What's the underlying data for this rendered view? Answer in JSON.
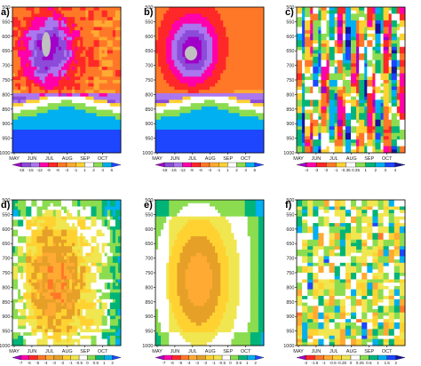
{
  "chart_data": [
    {
      "type": "heatmap",
      "panel_label": "a)",
      "x_ticks": [
        "MAY",
        "JUN",
        "JUL",
        "AUG",
        "SEP",
        "OCT"
      ],
      "y_ticks": [
        "500",
        "550",
        "600",
        "650",
        "700",
        "750",
        "800",
        "850",
        "900",
        "950",
        "1000"
      ],
      "ylim": [
        1000,
        500
      ],
      "y_inverted": true,
      "colorbar": [
        "-18",
        "-15",
        "-12",
        "-9",
        "-6",
        "-3",
        "-1",
        "1",
        "2",
        "4",
        "6"
      ],
      "colors": [
        "#a000c8",
        "#8c4bd8",
        "#aa77ee",
        "#ff00aa",
        "#ff2828",
        "#ff7828",
        "#ffaa32",
        "#ffd232",
        "#ffffff",
        "#8cdc50",
        "#00b0f0",
        "#1e46ff"
      ],
      "pattern": "dry upper, core ~650 hPa in early July, wet near surface"
    },
    {
      "type": "heatmap",
      "panel_label": "b)",
      "x_ticks": [
        "MAY",
        "JUN",
        "JUL",
        "AUG",
        "SEP",
        "OCT"
      ],
      "y_ticks": [
        "500",
        "550",
        "600",
        "650",
        "700",
        "750",
        "800",
        "850",
        "900",
        "950",
        "1000"
      ],
      "ylim": [
        1000,
        500
      ],
      "y_inverted": true,
      "colorbar": [
        "-18",
        "-15",
        "-12",
        "-9",
        "-6",
        "-3",
        "-1",
        "1",
        "2",
        "4",
        "6"
      ],
      "colors": [
        "#a000c8",
        "#8c4bd8",
        "#aa77ee",
        "#ff00aa",
        "#ff2828",
        "#ff7828",
        "#ffaa32",
        "#ffd232",
        "#ffffff",
        "#8cdc50",
        "#00b0f0",
        "#1e46ff"
      ],
      "pattern": "smooth version of a)"
    },
    {
      "type": "heatmap",
      "panel_label": "c)",
      "x_ticks": [
        "MAY",
        "JUN",
        "JUL",
        "AUG",
        "SEP",
        "OCT"
      ],
      "y_ticks": [
        "500",
        "550",
        "600",
        "650",
        "700",
        "750",
        "800",
        "850",
        "900",
        "950",
        "1000"
      ],
      "ylim": [
        1000,
        500
      ],
      "y_inverted": true,
      "colorbar": [
        "-4",
        "-3",
        "-2",
        "-1",
        "-0.35",
        "0.35",
        "1",
        "2",
        "3",
        "4"
      ],
      "colors": [
        "#a000c8",
        "#ff00aa",
        "#ff2828",
        "#ff7828",
        "#ffd232",
        "#ffffff",
        "#8cdc50",
        "#00b478",
        "#00b0f0",
        "#1e46ff",
        "#1414a0"
      ],
      "pattern": "difference a) minus b), vertical streaks"
    },
    {
      "type": "heatmap",
      "panel_label": "d)",
      "x_ticks": [
        "MAY",
        "JUN",
        "JUL",
        "AUG",
        "SEP",
        "OCT"
      ],
      "y_ticks": [
        "500",
        "550",
        "600",
        "650",
        "700",
        "750",
        "800",
        "850",
        "900",
        "950",
        "1000"
      ],
      "ylim": [
        1000,
        500
      ],
      "y_inverted": true,
      "colorbar": [
        "-7",
        "-6",
        "-5",
        "-4",
        "-3",
        "-2",
        "-1",
        "-0.5",
        "0",
        "0.5",
        "1",
        "2"
      ],
      "colors": [
        "#a000c8",
        "#ff00aa",
        "#ff2828",
        "#ff7828",
        "#ffaa32",
        "#e6a028",
        "#ffd232",
        "#f0e650",
        "#ffffff",
        "#8cdc50",
        "#00b478",
        "#00b0f0",
        "#1e46ff"
      ],
      "pattern": "orange core mid-levels, white margins"
    },
    {
      "type": "heatmap",
      "panel_label": "e)",
      "x_ticks": [
        "MAY",
        "JUN",
        "JUL",
        "AUG",
        "SEP",
        "OCT"
      ],
      "y_ticks": [
        "500",
        "550",
        "600",
        "650",
        "700",
        "750",
        "800",
        "850",
        "900",
        "950",
        "1000"
      ],
      "ylim": [
        1000,
        500
      ],
      "y_inverted": true,
      "colorbar": [
        "-7",
        "-6",
        "-5",
        "-4",
        "-3",
        "-2",
        "-1",
        "-0.5",
        "0",
        "0.5",
        "1",
        "2"
      ],
      "colors": [
        "#a000c8",
        "#ff00aa",
        "#ff2828",
        "#ff7828",
        "#ffaa32",
        "#e6a028",
        "#ffd232",
        "#f0e650",
        "#ffffff",
        "#8cdc50",
        "#00b478",
        "#00b0f0",
        "#1e46ff"
      ],
      "pattern": "smooth version of d)"
    },
    {
      "type": "heatmap",
      "panel_label": "f)",
      "x_ticks": [
        "MAY",
        "JUN",
        "JUL",
        "AUG",
        "SEP",
        "OCT"
      ],
      "y_ticks": [
        "500",
        "550",
        "600",
        "650",
        "700",
        "750",
        "800",
        "850",
        "900",
        "950",
        "1000"
      ],
      "ylim": [
        1000,
        500
      ],
      "y_inverted": true,
      "colorbar": [
        "-2",
        "-1.5",
        "-1",
        "-0.5",
        "-0.25",
        "0",
        "0.25",
        "0.5",
        "1",
        "1.5",
        "2"
      ],
      "colors": [
        "#a000c8",
        "#ff2828",
        "#ff7828",
        "#ffaa32",
        "#ffd232",
        "#f0e650",
        "#ffffff",
        "#8cdc50",
        "#00b478",
        "#00b0f0",
        "#1e46ff",
        "#1414a0"
      ],
      "pattern": "difference d) minus e), noisy"
    }
  ]
}
